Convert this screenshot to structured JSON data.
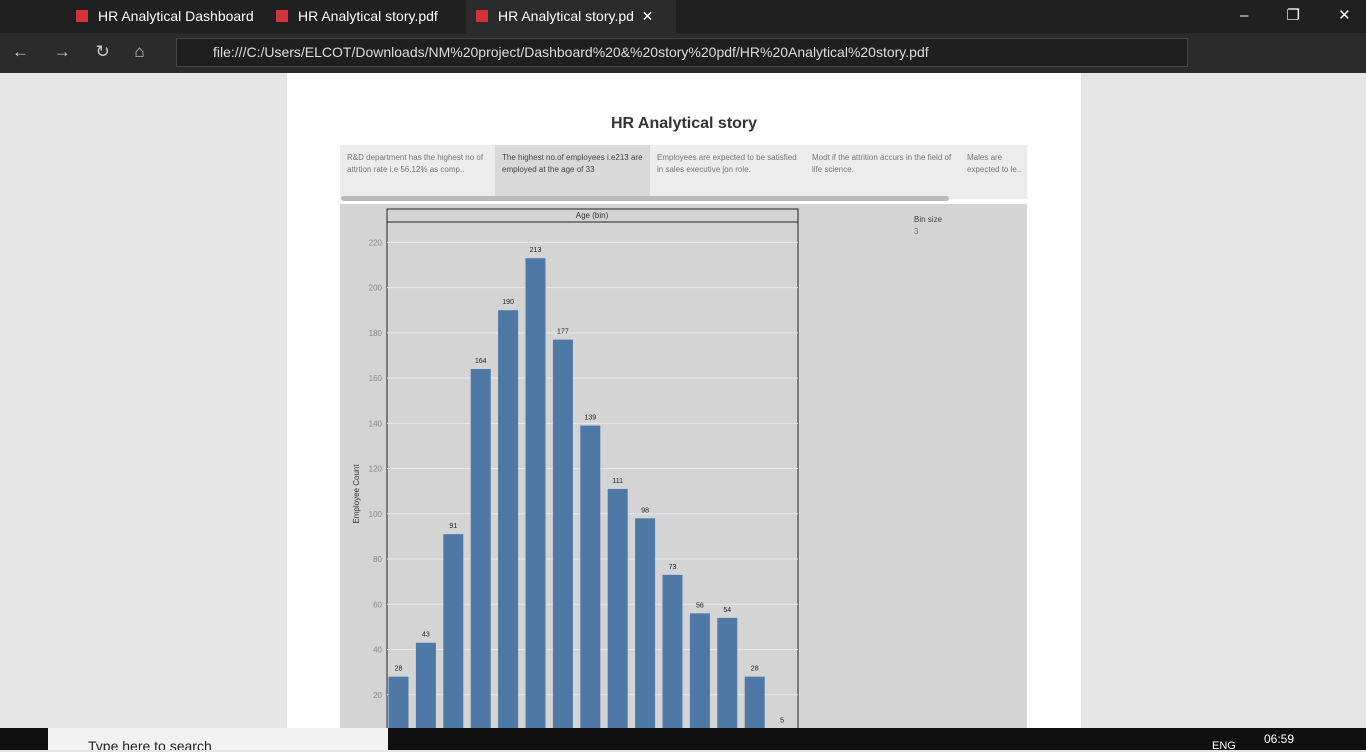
{
  "browser": {
    "tabs": [
      "HR Analytical Dashboard",
      "HR Analytical story.pdf",
      "HR Analytical story.pd"
    ],
    "address": "file:///C:/Users/ELCOT/Downloads/NM%20project/Dashboard%20&%20story%20pdf/HR%20Analytical%20story.pdf"
  },
  "document": {
    "title": "HR Analytical story",
    "story_points": [
      "R&D department has the highest no of attrtion rate i.e 56.12% as comp..",
      "The highest no.of employees i.e213 are employed at the age of 33",
      "Employees are expected to be satisfied in sales executive jon role.",
      "Modt if the attrition accurs in the field of life science.",
      "Males are expected to le.."
    ],
    "bin_size": {
      "label": "Bin size",
      "value": 3
    },
    "chart_data": {
      "type": "bar",
      "x_label": "Age (bin)",
      "y_label": "Employee Count",
      "values": [
        28,
        43,
        91,
        164,
        190,
        213,
        177,
        139,
        111,
        98,
        73,
        56,
        54,
        28,
        5
      ],
      "color": "#4e79a7",
      "ylim": [
        0,
        229
      ],
      "yticks": [
        20,
        40,
        60,
        80,
        100,
        120,
        140,
        160,
        180,
        200,
        220
      ],
      "grid": true
    }
  },
  "taskbar": {
    "search": "Type here to search",
    "language": "ENG",
    "time": "06:59"
  }
}
